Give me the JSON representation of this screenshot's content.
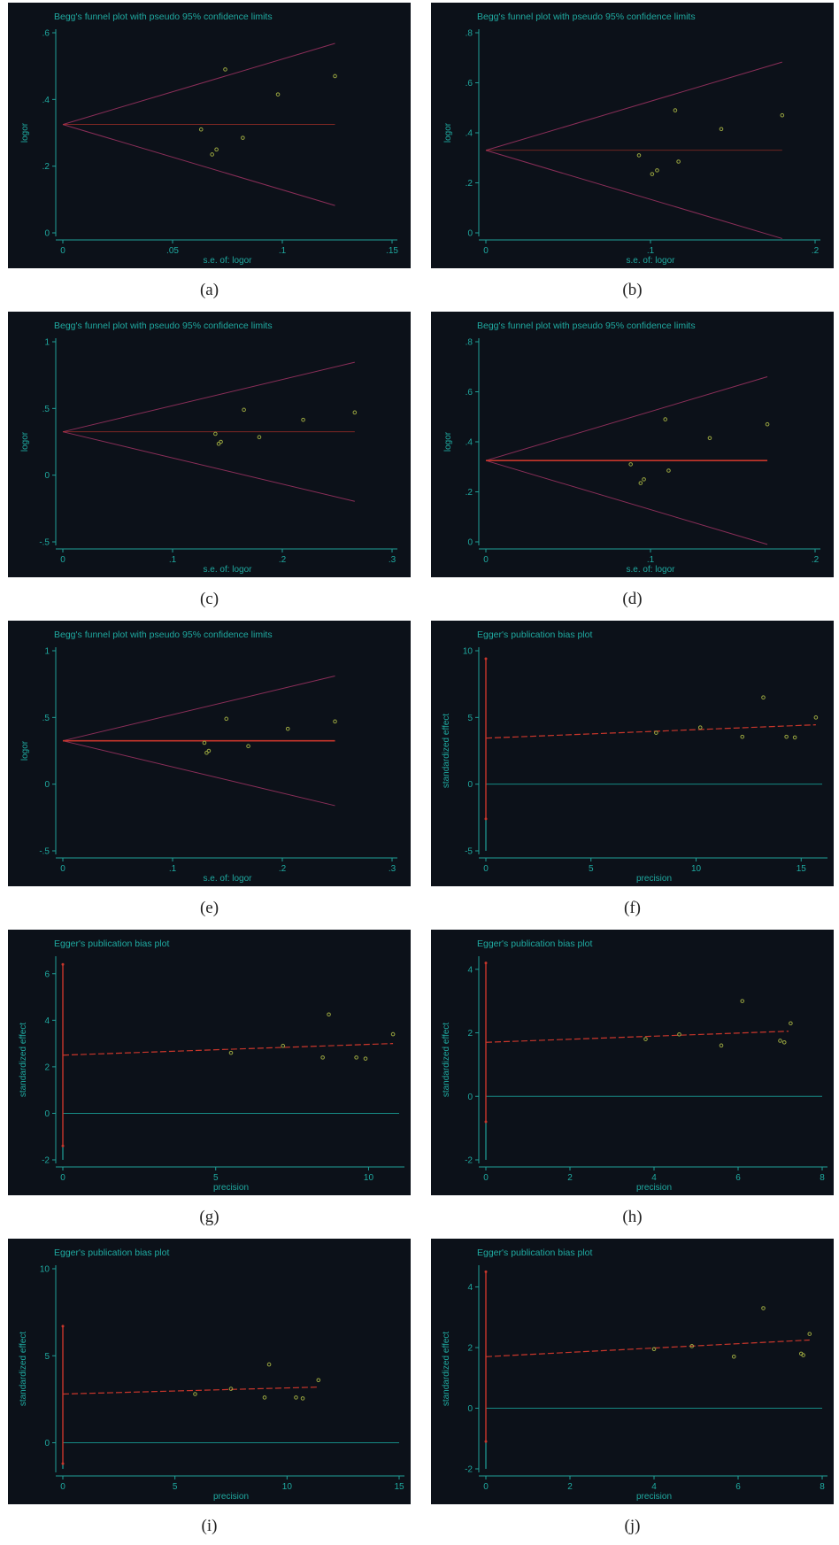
{
  "colors": {
    "panel_bg": "#0c1119",
    "text": "#1fa9a0",
    "axis": "#1f9f98",
    "point": "#9aa640",
    "limit_line": "#8a2e58",
    "fit_line": "#c8362b",
    "ci_line": "#c8362b",
    "ci_lower_line": "#1f9f98",
    "zero_line": "#168a84",
    "caption": "#222222"
  },
  "chart_data": [
    {
      "label": "(a)",
      "type": "funnel",
      "title": "Begg's funnel plot with pseudo 95% confidence limits",
      "xlabel": "s.e. of: logor",
      "ylabel": "logor",
      "xlim": [
        0,
        0.15
      ],
      "ylim": [
        0,
        0.6
      ],
      "xticks": [
        0,
        0.05,
        0.1,
        0.15
      ],
      "xtick_labels": [
        "0",
        ".05",
        ".1",
        ".15"
      ],
      "yticks": [
        0,
        0.2,
        0.4,
        0.6
      ],
      "ytick_labels": [
        "0",
        ".2",
        ".4",
        ".6"
      ],
      "pooled": 0.325,
      "se_max": 0.124,
      "pooled_line_emphasis": "thin",
      "points": [
        [
          0.063,
          0.31
        ],
        [
          0.068,
          0.235
        ],
        [
          0.07,
          0.25
        ],
        [
          0.074,
          0.49
        ],
        [
          0.082,
          0.285
        ],
        [
          0.098,
          0.415
        ],
        [
          0.124,
          0.47
        ]
      ]
    },
    {
      "label": "(b)",
      "type": "funnel",
      "title": "Begg's funnel plot with pseudo 95% confidence limits",
      "xlabel": "s.e. of: logor",
      "ylabel": "logor",
      "xlim": [
        0,
        0.2
      ],
      "ylim": [
        0,
        0.8
      ],
      "xticks": [
        0,
        0.1,
        0.2
      ],
      "xtick_labels": [
        "0",
        ".1",
        ".2"
      ],
      "yticks": [
        0,
        0.2,
        0.4,
        0.6,
        0.8
      ],
      "ytick_labels": [
        "0",
        ".2",
        ".4",
        ".6",
        ".8"
      ],
      "pooled": 0.33,
      "se_max": 0.18,
      "pooled_line_emphasis": "thin",
      "points": [
        [
          0.093,
          0.31
        ],
        [
          0.101,
          0.235
        ],
        [
          0.104,
          0.25
        ],
        [
          0.115,
          0.49
        ],
        [
          0.117,
          0.285
        ],
        [
          0.143,
          0.415
        ],
        [
          0.18,
          0.47
        ]
      ]
    },
    {
      "label": "(c)",
      "type": "funnel",
      "title": "Begg's funnel plot with pseudo 95% confidence limits",
      "xlabel": "s.e. of: logor",
      "ylabel": "logor",
      "xlim": [
        0,
        0.3
      ],
      "ylim": [
        -0.5,
        1
      ],
      "xticks": [
        0,
        0.1,
        0.2,
        0.3
      ],
      "xtick_labels": [
        "0",
        ".1",
        ".2",
        ".3"
      ],
      "yticks": [
        -0.5,
        0,
        0.5,
        1
      ],
      "ytick_labels": [
        "-.5",
        "0",
        ".5",
        "1"
      ],
      "pooled": 0.325,
      "se_max": 0.266,
      "pooled_line_emphasis": "thin",
      "points": [
        [
          0.139,
          0.31
        ],
        [
          0.142,
          0.235
        ],
        [
          0.144,
          0.25
        ],
        [
          0.165,
          0.49
        ],
        [
          0.179,
          0.285
        ],
        [
          0.219,
          0.415
        ],
        [
          0.266,
          0.47
        ]
      ]
    },
    {
      "label": "(d)",
      "type": "funnel",
      "title": "Begg's funnel plot with pseudo 95% confidence limits",
      "xlabel": "s.e. of: logor",
      "ylabel": "logor",
      "xlim": [
        0,
        0.2
      ],
      "ylim": [
        0,
        0.8
      ],
      "xticks": [
        0,
        0.1,
        0.2
      ],
      "xtick_labels": [
        "0",
        ".1",
        ".2"
      ],
      "yticks": [
        0,
        0.2,
        0.4,
        0.6,
        0.8
      ],
      "ytick_labels": [
        "0",
        ".2",
        ".4",
        ".6",
        ".8"
      ],
      "pooled": 0.325,
      "se_max": 0.171,
      "pooled_line_emphasis": "bold",
      "points": [
        [
          0.088,
          0.31
        ],
        [
          0.094,
          0.235
        ],
        [
          0.096,
          0.25
        ],
        [
          0.109,
          0.49
        ],
        [
          0.111,
          0.285
        ],
        [
          0.136,
          0.415
        ],
        [
          0.171,
          0.47
        ]
      ]
    },
    {
      "label": "(e)",
      "type": "funnel",
      "title": "Begg's funnel plot with pseudo 95% confidence limits",
      "xlabel": "s.e. of: logor",
      "ylabel": "logor",
      "xlim": [
        0,
        0.3
      ],
      "ylim": [
        -0.5,
        1
      ],
      "xticks": [
        0,
        0.1,
        0.2,
        0.3
      ],
      "xtick_labels": [
        "0",
        ".1",
        ".2",
        ".3"
      ],
      "yticks": [
        -0.5,
        0,
        0.5,
        1
      ],
      "ytick_labels": [
        "-.5",
        "0",
        ".5",
        "1"
      ],
      "pooled": 0.325,
      "se_max": 0.248,
      "pooled_line_emphasis": "bold",
      "points": [
        [
          0.129,
          0.31
        ],
        [
          0.131,
          0.235
        ],
        [
          0.133,
          0.25
        ],
        [
          0.149,
          0.49
        ],
        [
          0.169,
          0.285
        ],
        [
          0.205,
          0.415
        ],
        [
          0.248,
          0.47
        ]
      ]
    },
    {
      "label": "(f)",
      "type": "egger",
      "title": "Egger's publication bias plot",
      "xlabel": "precision",
      "ylabel": "standardized effect",
      "xlim": [
        0,
        16
      ],
      "ylim": [
        -5,
        10
      ],
      "xticks": [
        0,
        5,
        10,
        15
      ],
      "xtick_labels": [
        "0",
        "5",
        "10",
        "15"
      ],
      "yticks": [
        -5,
        0,
        5,
        10
      ],
      "ytick_labels": [
        "-5",
        "0",
        "5",
        "10"
      ],
      "intercept": 3.45,
      "fit_end": [
        15.7,
        4.45
      ],
      "ci": [
        -2.6,
        9.4
      ],
      "points": [
        [
          8.1,
          3.85
        ],
        [
          10.2,
          4.25
        ],
        [
          12.2,
          3.55
        ],
        [
          13.2,
          6.5
        ],
        [
          14.3,
          3.55
        ],
        [
          14.7,
          3.5
        ],
        [
          15.7,
          5.0
        ]
      ]
    },
    {
      "label": "(g)",
      "type": "egger",
      "title": "Egger's publication bias plot",
      "xlabel": "precision",
      "ylabel": "standardized effect",
      "xlim": [
        0,
        11
      ],
      "ylim": [
        -2,
        6.6
      ],
      "xticks": [
        0,
        5,
        10
      ],
      "xtick_labels": [
        "0",
        "5",
        "10"
      ],
      "yticks": [
        -2,
        0,
        2,
        4,
        6
      ],
      "ytick_labels": [
        "-2",
        "0",
        "2",
        "4",
        "6"
      ],
      "intercept": 2.5,
      "fit_end": [
        10.8,
        3.0
      ],
      "ci": [
        -1.4,
        6.4
      ],
      "points": [
        [
          5.5,
          2.6
        ],
        [
          7.2,
          2.9
        ],
        [
          8.5,
          2.4
        ],
        [
          8.7,
          4.25
        ],
        [
          9.6,
          2.4
        ],
        [
          9.9,
          2.35
        ],
        [
          10.8,
          3.4
        ]
      ]
    },
    {
      "label": "(h)",
      "type": "egger",
      "title": "Egger's publication bias plot",
      "xlabel": "precision",
      "ylabel": "standardized effect",
      "xlim": [
        0,
        8
      ],
      "ylim": [
        -2,
        4.3
      ],
      "xticks": [
        0,
        2,
        4,
        6,
        8
      ],
      "xtick_labels": [
        "0",
        "2",
        "4",
        "6",
        "8"
      ],
      "yticks": [
        -2,
        0,
        2,
        4
      ],
      "ytick_labels": [
        "-2",
        "0",
        "2",
        "4"
      ],
      "intercept": 1.7,
      "fit_end": [
        7.2,
        2.05
      ],
      "ci": [
        -0.8,
        4.2
      ],
      "points": [
        [
          3.8,
          1.8
        ],
        [
          4.6,
          1.95
        ],
        [
          5.6,
          1.6
        ],
        [
          6.1,
          3.0
        ],
        [
          7.0,
          1.75
        ],
        [
          7.1,
          1.7
        ],
        [
          7.25,
          2.3
        ]
      ]
    },
    {
      "label": "(i)",
      "type": "egger",
      "title": "Egger's publication bias plot",
      "xlabel": "precision",
      "ylabel": "standardized effect",
      "xlim": [
        0,
        15
      ],
      "ylim": [
        -1.5,
        10
      ],
      "xticks": [
        0,
        5,
        10,
        15
      ],
      "xtick_labels": [
        "0",
        "5",
        "10",
        "15"
      ],
      "yticks": [
        0,
        5,
        10
      ],
      "ytick_labels": [
        "0",
        "5",
        "10"
      ],
      "intercept": 2.8,
      "fit_end": [
        11.4,
        3.2
      ],
      "ci": [
        -1.2,
        6.7
      ],
      "points": [
        [
          5.9,
          2.8
        ],
        [
          7.5,
          3.1
        ],
        [
          9.0,
          2.6
        ],
        [
          9.2,
          4.5
        ],
        [
          10.4,
          2.6
        ],
        [
          10.7,
          2.55
        ],
        [
          11.4,
          3.6
        ]
      ]
    },
    {
      "label": "(j)",
      "type": "egger",
      "title": "Egger's publication bias plot",
      "xlabel": "precision",
      "ylabel": "standardized effect",
      "xlim": [
        0,
        8
      ],
      "ylim": [
        -2,
        4.6
      ],
      "xticks": [
        0,
        2,
        4,
        6,
        8
      ],
      "xtick_labels": [
        "0",
        "2",
        "4",
        "6",
        "8"
      ],
      "yticks": [
        -2,
        0,
        2,
        4
      ],
      "ytick_labels": [
        "-2",
        "0",
        "2",
        "4"
      ],
      "intercept": 1.7,
      "fit_end": [
        7.7,
        2.25
      ],
      "ci": [
        -1.1,
        4.5
      ],
      "points": [
        [
          4.0,
          1.95
        ],
        [
          4.9,
          2.05
        ],
        [
          5.9,
          1.7
        ],
        [
          6.6,
          3.3
        ],
        [
          7.5,
          1.8
        ],
        [
          7.55,
          1.75
        ],
        [
          7.7,
          2.45
        ]
      ]
    }
  ]
}
